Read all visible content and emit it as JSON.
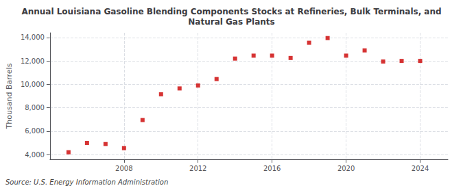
{
  "chart_data": {
    "type": "scatter",
    "title": "Annual Louisiana Gasoline Blending Components Stocks at Refineries, Bulk Terminals, and\nNatural Gas Plants",
    "y_label": "Thousand Barrels",
    "annotations": [
      "Source: U.S. Energy Information Administration"
    ],
    "x": [
      2005,
      2006,
      2007,
      2008,
      2009,
      2010,
      2011,
      2012,
      2013,
      2014,
      2015,
      2016,
      2017,
      2018,
      2019,
      2020,
      2021,
      2022,
      2023,
      2024
    ],
    "values": [
      4200,
      5000,
      4900,
      4550,
      6950,
      9150,
      9650,
      9900,
      10450,
      12200,
      12450,
      12450,
      12250,
      13550,
      13950,
      12450,
      12900,
      11950,
      12000,
      12000
    ],
    "color": "#cc0000",
    "marker": "square",
    "xlim": [
      2004.0,
      2025.5
    ],
    "xticks": [
      2008,
      2012,
      2016,
      2020,
      2024
    ],
    "ylim": [
      3600,
      14400
    ],
    "yticks": [
      {
        "value": 4000,
        "label": "4,000"
      },
      {
        "value": 6000,
        "label": "6,000"
      },
      {
        "value": 8000,
        "label": "8,000"
      },
      {
        "value": 10000,
        "label": "10,000"
      },
      {
        "value": 12000,
        "label": "12,000"
      },
      {
        "value": 14000,
        "label": "14,000"
      }
    ],
    "grid": true
  }
}
